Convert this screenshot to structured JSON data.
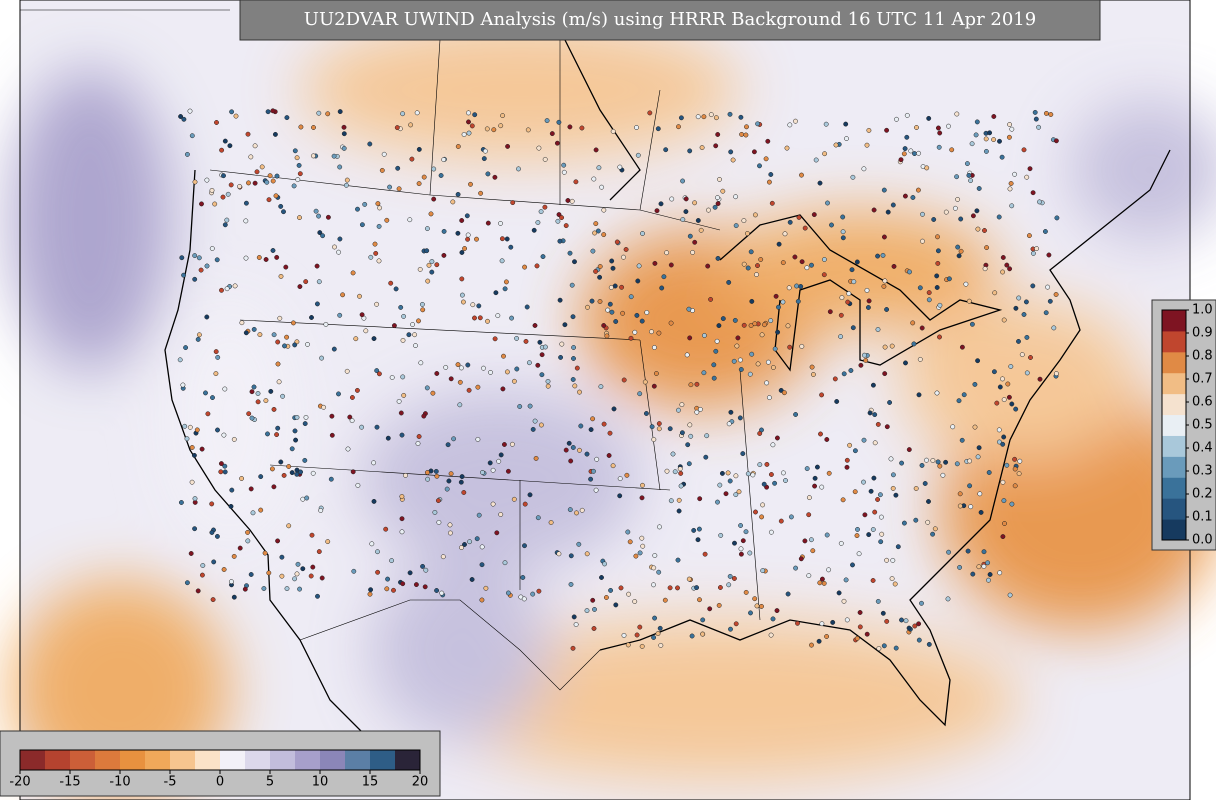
{
  "title": "UU2DVAR UWIND Analysis (m/s) using HRRR Background 16 UTC 11 Apr 2019",
  "wind_colorbar": {
    "lim": [
      -20,
      20
    ],
    "ticks": [
      -20,
      -15,
      -10,
      -5,
      0,
      5,
      10,
      15,
      20
    ],
    "colors": [
      "#8b2a2a",
      "#b5432f",
      "#cc5f38",
      "#dd7a3c",
      "#e8913f",
      "#f0a85a",
      "#f6c58f",
      "#fbe3c8",
      "#f3f1f8",
      "#dcd8eb",
      "#c2bddc",
      "#a79fcb",
      "#8b86b8",
      "#5b7fa6",
      "#2e5d86",
      "#2a2438"
    ]
  },
  "obs_colorbar": {
    "lim": [
      0,
      1
    ],
    "ticks": [
      {
        "value": 0,
        "label": "0.0"
      },
      0.1,
      0.2,
      0.3,
      0.4,
      0.5,
      0.6,
      0.7,
      0.8,
      0.9,
      {
        "value": 1,
        "label": "1.0"
      }
    ],
    "colors": [
      "#163a5f",
      "#26557f",
      "#3a729a",
      "#6a9bbb",
      "#a9c8da",
      "#e9eff4",
      "#f5e2cf",
      "#f1bd85",
      "#e08a45",
      "#c0462e",
      "#7e1422"
    ]
  }
}
